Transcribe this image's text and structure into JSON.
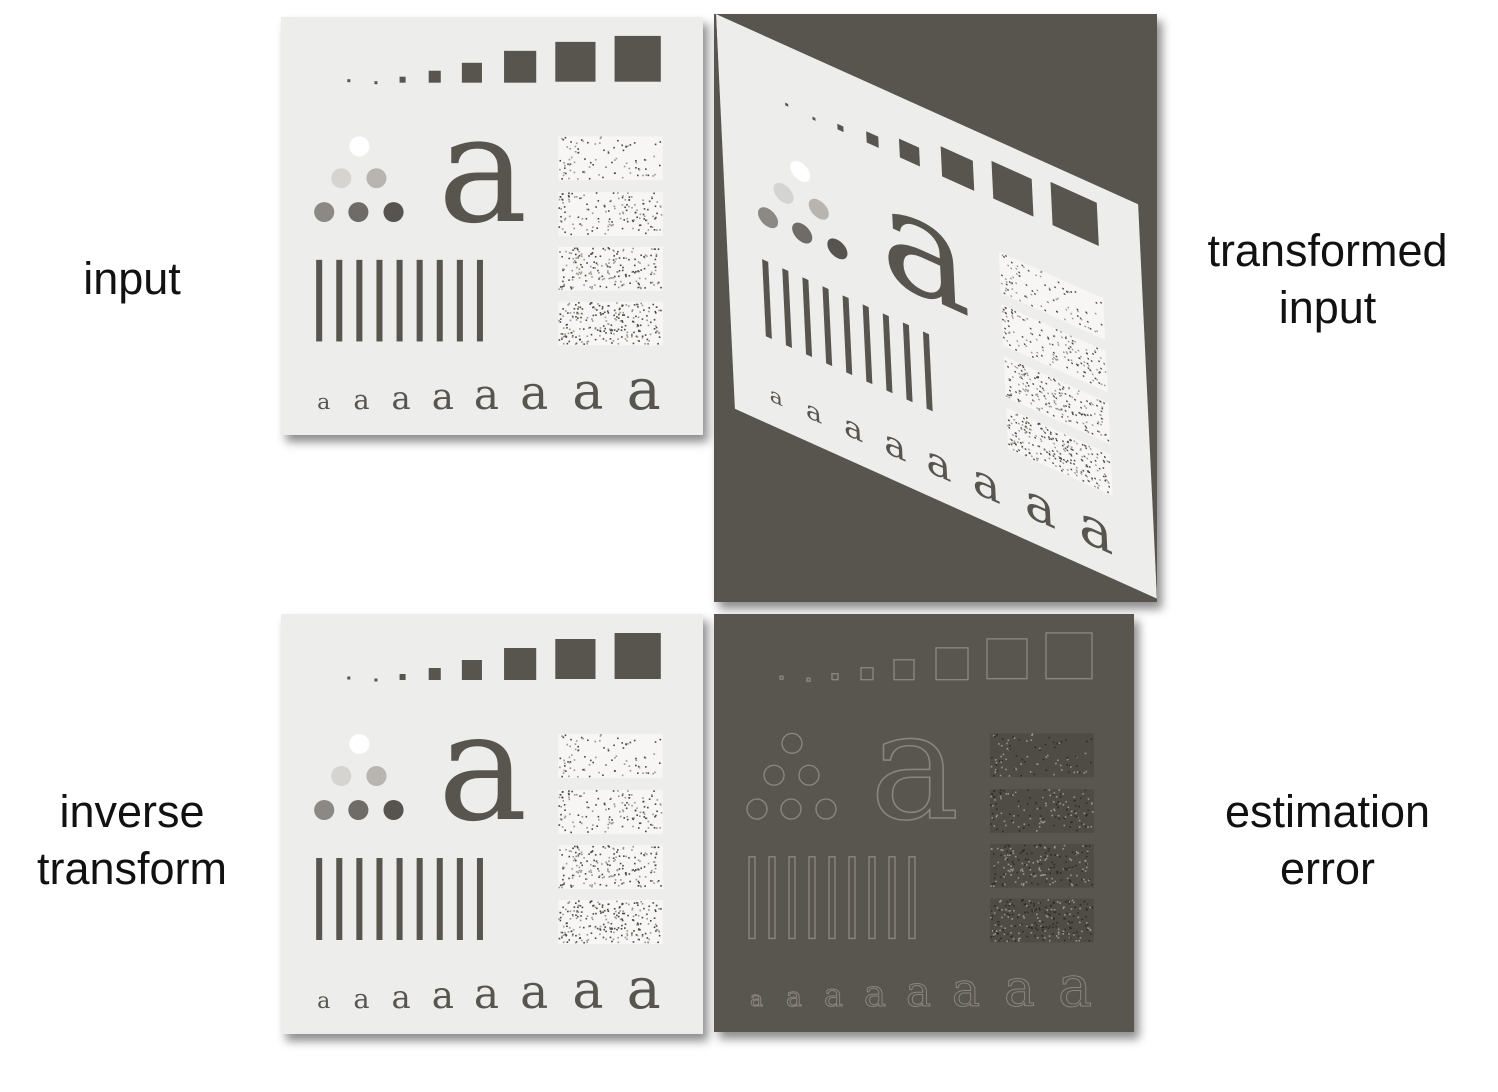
{
  "labels": {
    "input": [
      "input"
    ],
    "transformed_input": [
      "transformed",
      "input"
    ],
    "inverse_transform": [
      "inverse",
      "transform"
    ],
    "estimation_error": [
      "estimation",
      "error"
    ]
  },
  "glyph": "a",
  "colors": {
    "paper": "#ededeb",
    "ink": "#58544e",
    "error_bg": "#59554f",
    "error_edge": "#8a857e",
    "noise_dark": "#4a4640"
  }
}
